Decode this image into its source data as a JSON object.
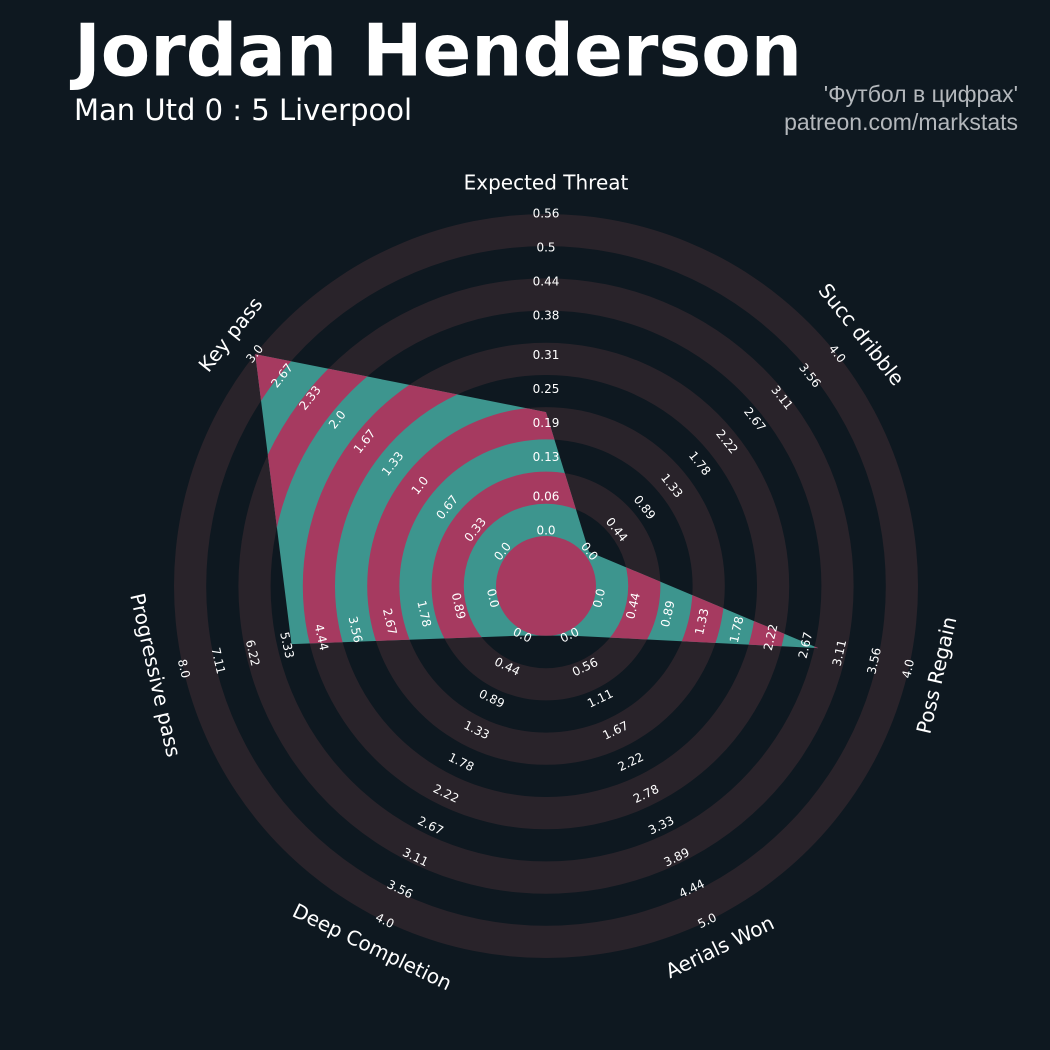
{
  "chart_data": {
    "type": "radar",
    "title": "Jordan Henderson",
    "subtitle": "Man Utd 0 : 5 Liverpool",
    "credits": [
      "'Футбол в цифрах'",
      "patreon.com/markstats"
    ],
    "categories": [
      "Expected Threat",
      "Succ dribble",
      "Poss Regain",
      "Aerials Won",
      "Deep Completion",
      "Progressive pass",
      "Key pass"
    ],
    "values": [
      0.21,
      0.0,
      2.83,
      0.0,
      0.0,
      5.2,
      3.0
    ],
    "ranges": [
      [
        0,
        0.56
      ],
      [
        0,
        4
      ],
      [
        0,
        4
      ],
      [
        0,
        5
      ],
      [
        0,
        4
      ],
      [
        0,
        8
      ],
      [
        0,
        3
      ]
    ],
    "ticks": [
      [
        {
          "value": 0,
          "label": "0.0"
        },
        0.06,
        0.13,
        0.19,
        0.25,
        0.31,
        0.38,
        0.44,
        0.5,
        0.56
      ],
      [
        {
          "value": 0,
          "label": "0.0"
        },
        0.44,
        0.89,
        1.33,
        1.78,
        2.22,
        2.67,
        3.11,
        3.56,
        {
          "value": 4,
          "label": "4.0"
        }
      ],
      [
        {
          "value": 0,
          "label": "0.0"
        },
        0.44,
        0.89,
        1.33,
        1.78,
        2.22,
        2.67,
        3.11,
        3.56,
        {
          "value": 4,
          "label": "4.0"
        }
      ],
      [
        {
          "value": 0,
          "label": "0.0"
        },
        0.56,
        1.11,
        1.67,
        2.22,
        2.78,
        3.33,
        3.89,
        4.44,
        {
          "value": 5,
          "label": "5.0"
        }
      ],
      [
        {
          "value": 0,
          "label": "0.0"
        },
        0.44,
        0.89,
        1.33,
        1.78,
        2.22,
        2.67,
        3.11,
        3.56,
        {
          "value": 4,
          "label": "4.0"
        }
      ],
      [
        {
          "value": 0,
          "label": "0.0"
        },
        0.89,
        1.78,
        2.67,
        3.56,
        4.44,
        5.33,
        6.22,
        7.11,
        {
          "value": 8,
          "label": "8.0"
        }
      ],
      [
        {
          "value": 0,
          "label": "0.0"
        },
        0.33,
        0.67,
        {
          "value": 1,
          "label": "1.0"
        },
        1.33,
        1.67,
        {
          "value": 2,
          "label": "2.0"
        },
        2.33,
        2.67,
        {
          "value": 3,
          "label": "3.0"
        }
      ]
    ],
    "color": "#3d958e",
    "band_color": "#a63a60",
    "ring_color": "#29232a"
  }
}
